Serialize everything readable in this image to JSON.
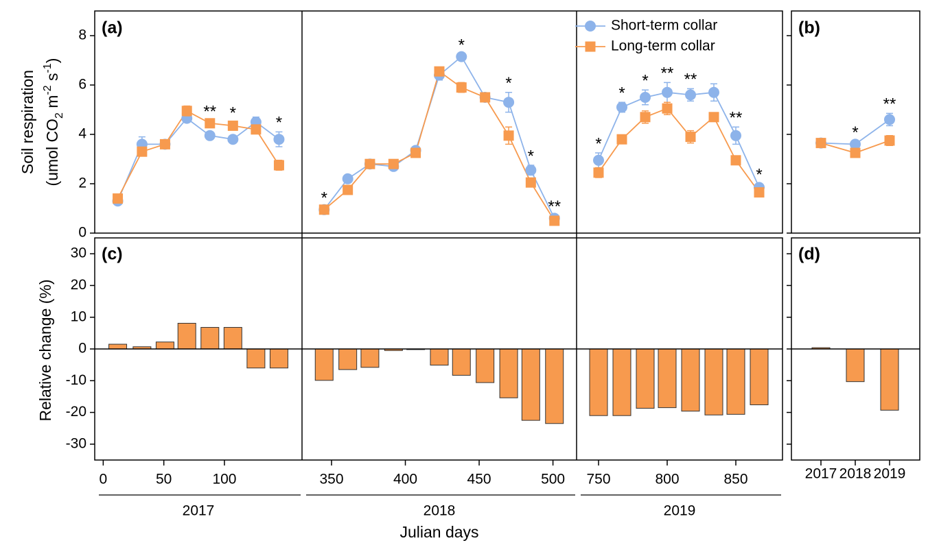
{
  "chart_data": [
    {
      "type": "line",
      "panel_label": "(a)",
      "ylabel": "Soil respiration",
      "ylabel_units": [
        {
          "text": "(umol CO"
        },
        {
          "text": "2",
          "shift": "sub"
        },
        {
          "text": " m"
        },
        {
          "text": "-2",
          "shift": "super"
        },
        {
          "text": " s"
        },
        {
          "text": "-1",
          "shift": "super"
        },
        {
          "text": ")"
        }
      ],
      "ylim": [
        0,
        9
      ],
      "yticks": [
        0,
        2,
        4,
        6,
        8
      ],
      "segments": [
        {
          "xlim": [
            -7,
            164
          ]
        },
        {
          "xlim": [
            330,
            516
          ]
        },
        {
          "xlim": [
            734,
            884
          ]
        }
      ],
      "x": [
        12,
        32,
        51,
        69,
        88,
        107,
        126,
        145,
        345,
        361,
        376,
        392,
        407,
        423,
        438,
        454,
        470,
        485,
        501,
        750,
        767,
        784,
        800,
        817,
        834,
        850,
        867
      ],
      "series": [
        {
          "name": "Short-term collar",
          "color": "#8db3ea",
          "marker": "circle",
          "values": [
            1.3,
            3.6,
            3.6,
            4.65,
            3.95,
            3.8,
            4.5,
            3.8,
            0.95,
            2.2,
            2.8,
            2.7,
            3.35,
            6.4,
            7.15,
            5.5,
            5.3,
            2.55,
            0.6,
            2.95,
            5.1,
            5.5,
            5.7,
            5.6,
            5.7,
            3.95,
            1.85
          ],
          "errors": [
            0.1,
            0.3,
            0.15,
            0.1,
            0.15,
            0.1,
            0.2,
            0.3,
            0.1,
            0.1,
            0.1,
            0.15,
            0.1,
            0.2,
            0.1,
            0.15,
            0.4,
            0.2,
            0.1,
            0.3,
            0.2,
            0.3,
            0.4,
            0.25,
            0.35,
            0.35,
            0.15
          ]
        },
        {
          "name": "Long-term collar",
          "color": "#f79a4e",
          "marker": "square",
          "values": [
            1.4,
            3.3,
            3.6,
            4.95,
            4.45,
            4.35,
            4.2,
            2.75,
            0.95,
            1.75,
            2.8,
            2.8,
            3.25,
            6.55,
            5.9,
            5.5,
            3.95,
            2.05,
            0.5,
            2.45,
            3.8,
            4.7,
            5.05,
            3.9,
            4.7,
            2.95,
            1.65
          ],
          "errors": [
            0.15,
            0.15,
            0.1,
            0.2,
            0.1,
            0.15,
            0.15,
            0.2,
            0.1,
            0.1,
            0.1,
            0.15,
            0.1,
            0.1,
            0.2,
            0.15,
            0.35,
            0.15,
            0.1,
            0.2,
            0.15,
            0.25,
            0.25,
            0.25,
            0.15,
            0.1,
            0.1
          ]
        }
      ],
      "significance": [
        null,
        null,
        null,
        null,
        "**",
        "*",
        null,
        "*",
        "*",
        null,
        null,
        null,
        null,
        null,
        "*",
        null,
        "*",
        "*",
        "**",
        "*",
        "*",
        "*",
        "**",
        "**",
        null,
        "**",
        "*"
      ]
    },
    {
      "type": "bar",
      "panel_label": "(c)",
      "ylabel": "Relative change (%)",
      "xlabel": "Julian days",
      "ylim": [
        -35,
        35
      ],
      "yticks": [
        -30,
        -20,
        -10,
        0,
        10,
        20,
        30
      ],
      "segments": [
        {
          "xlim": [
            -7,
            164
          ],
          "xticks": [
            0,
            50,
            100
          ],
          "label": "2017"
        },
        {
          "xlim": [
            330,
            516
          ],
          "xticks": [
            350,
            400,
            450,
            500
          ],
          "label": "2018"
        },
        {
          "xlim": [
            734,
            884
          ],
          "xticks": [
            750,
            800,
            850
          ],
          "label": "2019"
        }
      ],
      "x": [
        12,
        32,
        51,
        69,
        88,
        107,
        126,
        145,
        345,
        361,
        376,
        392,
        407,
        423,
        438,
        454,
        470,
        485,
        501,
        750,
        767,
        784,
        800,
        817,
        834,
        850,
        867
      ],
      "values": [
        1.5,
        0.7,
        2.2,
        8.1,
        6.8,
        6.8,
        -6,
        -6,
        -9.9,
        -6.5,
        -5.8,
        -0.5,
        -0.2,
        -5.1,
        -8.3,
        -10.6,
        -15.4,
        -22.5,
        -23.5,
        -21,
        -21,
        -18.7,
        -18.5,
        -19.6,
        -20.8,
        -20.6,
        -17.6
      ],
      "color": "#f79a4e"
    },
    {
      "type": "line",
      "panel_label": "(b)",
      "ylim": [
        0,
        9
      ],
      "yticks": [
        0,
        2,
        4,
        6,
        8
      ],
      "series": [
        {
          "name": "Short-term collar",
          "color": "#8db3ea",
          "marker": "circle",
          "values": [
            3.65,
            3.6,
            4.6
          ],
          "errors": [
            0.1,
            0.1,
            0.25
          ]
        },
        {
          "name": "Long-term collar",
          "color": "#f79a4e",
          "marker": "square",
          "values": [
            3.65,
            3.25,
            3.75
          ],
          "errors": [
            0.1,
            0.15,
            0.2
          ]
        }
      ],
      "significance": [
        null,
        "*",
        "**"
      ]
    },
    {
      "type": "bar",
      "panel_label": "(d)",
      "categories": [
        "2017",
        "2018",
        "2019"
      ],
      "values": [
        0.4,
        -10.3,
        -19.3
      ],
      "ylim": [
        -35,
        35
      ],
      "yticks": [
        -30,
        -20,
        -10,
        0,
        10,
        20,
        30
      ],
      "color": "#f79a4e"
    }
  ]
}
